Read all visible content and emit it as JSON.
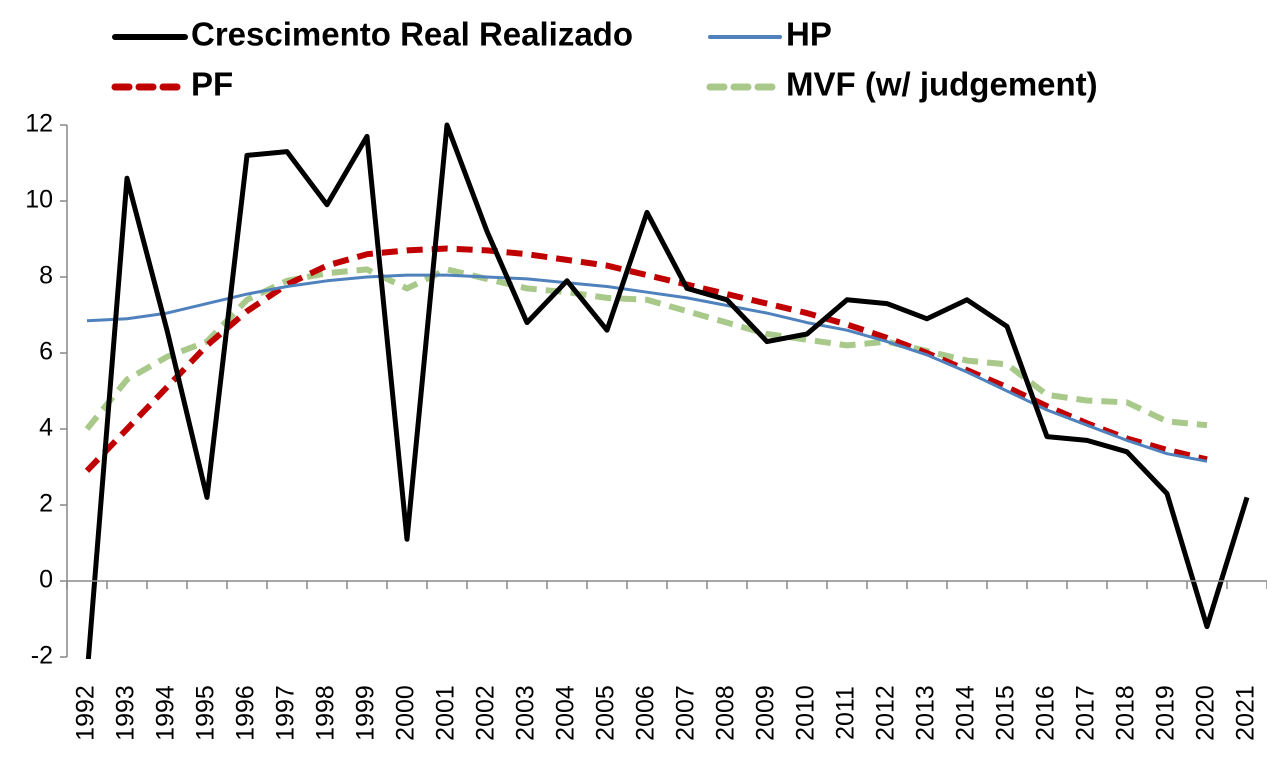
{
  "chart_data": {
    "type": "line",
    "categories": [
      "1992",
      "1993",
      "1994",
      "1995",
      "1996",
      "1997",
      "1998",
      "1999",
      "2000",
      "2001",
      "2002",
      "2003",
      "2004",
      "2005",
      "2006",
      "2007",
      "2008",
      "2009",
      "2010",
      "2011",
      "2012",
      "2013",
      "2014",
      "2015",
      "2016",
      "2017",
      "2018",
      "2019",
      "2020",
      "2021"
    ],
    "series": [
      {
        "name": "Crescimento Real Realizado",
        "color": "#000000",
        "dash": false,
        "values": [
          -2.5,
          10.6,
          6.6,
          2.2,
          11.2,
          11.3,
          9.9,
          11.7,
          1.1,
          12.0,
          9.2,
          6.8,
          7.9,
          6.6,
          9.7,
          7.7,
          7.4,
          6.3,
          6.5,
          7.4,
          7.3,
          6.9,
          7.4,
          6.7,
          3.8,
          3.7,
          3.4,
          2.3,
          -1.2,
          2.2
        ]
      },
      {
        "name": "HP",
        "color": "#4f81bd",
        "dash": false,
        "values": [
          6.85,
          6.9,
          7.05,
          7.3,
          7.55,
          7.75,
          7.9,
          8.0,
          8.05,
          8.05,
          8.0,
          7.95,
          7.85,
          7.75,
          7.6,
          7.45,
          7.25,
          7.05,
          6.8,
          6.6,
          6.3,
          5.95,
          5.5,
          5.0,
          4.5,
          4.1,
          3.7,
          3.35,
          3.15,
          null
        ]
      },
      {
        "name": "PF",
        "color": "#c00000",
        "dash": true,
        "values": [
          2.9,
          4.0,
          5.1,
          6.2,
          7.1,
          7.8,
          8.3,
          8.6,
          8.7,
          8.75,
          8.7,
          8.6,
          8.45,
          8.3,
          8.05,
          7.8,
          7.55,
          7.3,
          7.05,
          6.75,
          6.4,
          6.0,
          5.55,
          5.1,
          4.6,
          4.15,
          3.75,
          3.45,
          3.2,
          null
        ]
      },
      {
        "name": "MVF (w/ judgement)",
        "color": "#a9c98a",
        "dash": true,
        "values": [
          4.0,
          5.3,
          5.9,
          6.3,
          7.4,
          7.9,
          8.1,
          8.2,
          7.7,
          8.2,
          7.95,
          7.7,
          7.6,
          7.45,
          7.4,
          7.1,
          6.8,
          6.5,
          6.35,
          6.2,
          6.3,
          6.05,
          5.8,
          5.7,
          4.9,
          4.75,
          4.7,
          4.2,
          4.1,
          null
        ]
      }
    ],
    "ylim": [
      -2,
      12
    ],
    "yticks": [
      -2,
      0,
      2,
      4,
      6,
      8,
      10,
      12
    ],
    "grid": false,
    "legend": "top"
  }
}
